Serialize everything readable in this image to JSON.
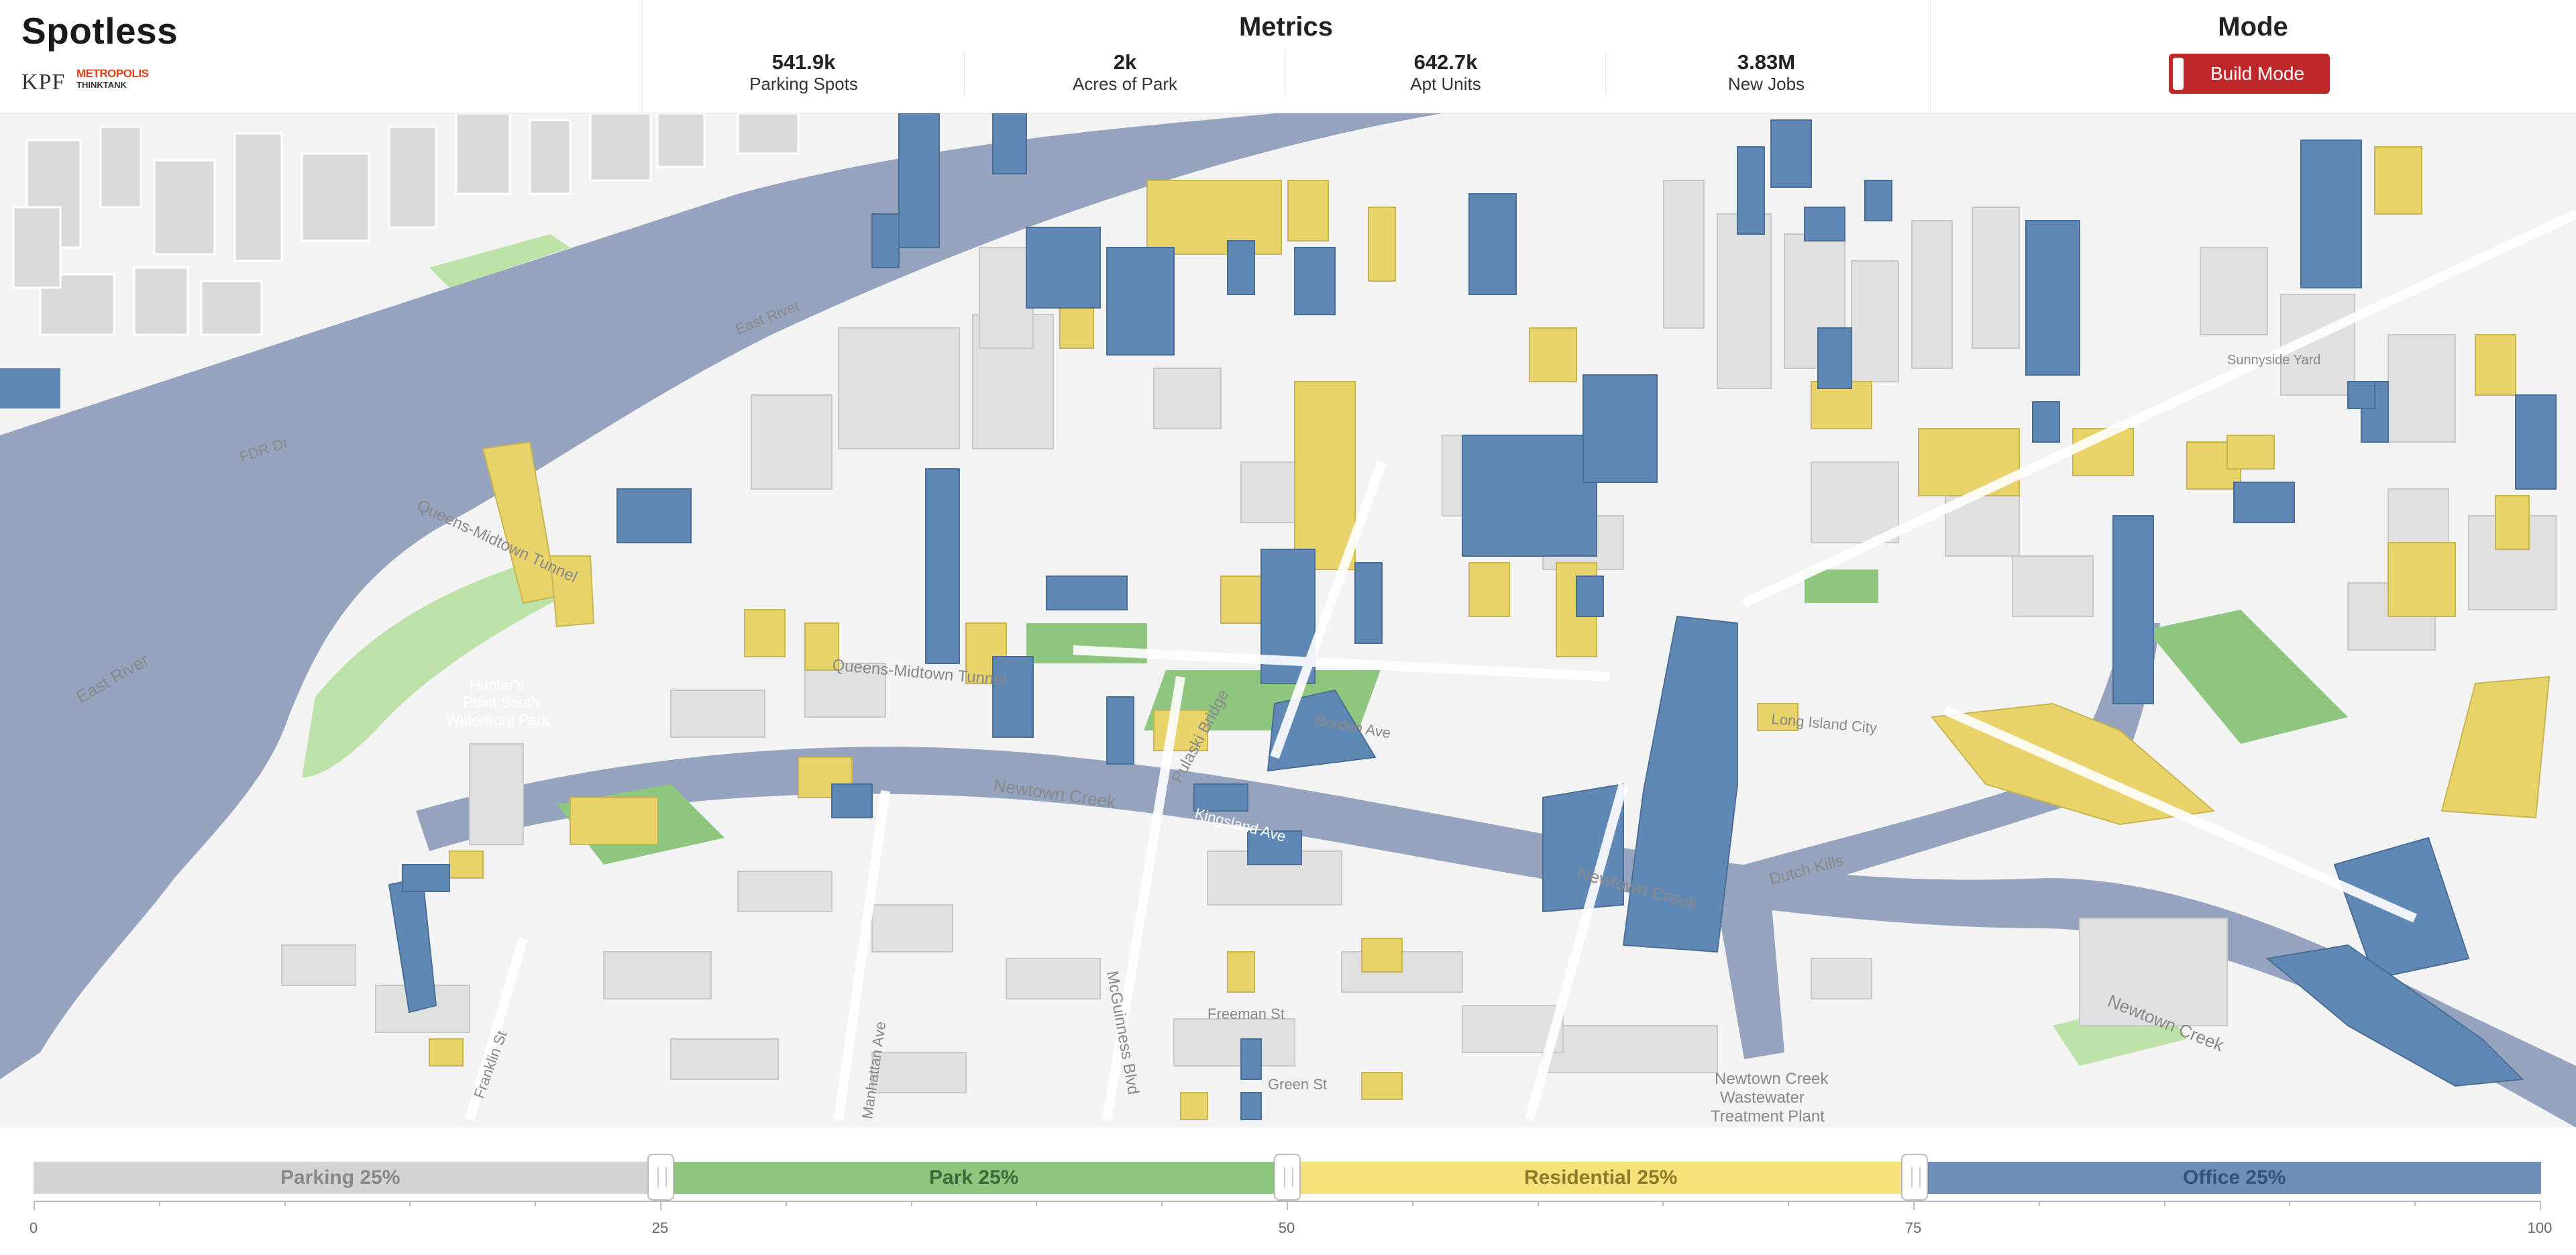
{
  "app": {
    "title": "Spotless"
  },
  "logos": {
    "kpf": "KPF",
    "metropolis_line1": "METROPOLIS",
    "metropolis_line2": "THINKTANK"
  },
  "metrics": {
    "title": "Metrics",
    "items": [
      {
        "value": "541.9k",
        "label": "Parking Spots"
      },
      {
        "value": "2k",
        "label": "Acres of Park"
      },
      {
        "value": "642.7k",
        "label": "Apt Units"
      },
      {
        "value": "3.83M",
        "label": "New Jobs"
      }
    ]
  },
  "mode": {
    "title": "Mode",
    "button_label": "Build Mode",
    "accent": "#c0292b"
  },
  "map": {
    "colors": {
      "water": "#95a3be",
      "park": "#bde2a8",
      "park_dark": "#8fc67f",
      "residential": "#e8d36a",
      "office": "#6088b5",
      "building": "#e2e2e2"
    },
    "labels": {
      "east_river": "East River",
      "fdr_dr": "FDR Dr",
      "queens_midtown_tunnel": "Queens-Midtown Tunnel",
      "hunters_point": "Hunter's",
      "hunters_point_2": "Point South",
      "hunters_point_3": "Waterfront Park",
      "newtown_creek": "Newtown Creek",
      "pulaski_bridge": "Pulaski Bridge",
      "mcguinness_blvd": "McGuinness Blvd",
      "dutch_kills": "Dutch Kills",
      "long_island_city": "Long Island City",
      "sunnyside_yard": "Sunnyside Yard",
      "borden_ave": "Borden Ave",
      "franklin_st": "Franklin St",
      "manhattan_ave": "Manhattan Ave",
      "freeman_st": "Freeman St",
      "green_st": "Green St",
      "kingsland": "Kingsland Ave",
      "treatment_1": "Newtown Creek",
      "treatment_2": "Wastewater",
      "treatment_3": "Treatment Plant"
    }
  },
  "mix": {
    "segments": [
      {
        "label": "Parking 25%",
        "color": "#d3d3d3",
        "text_color": "#888888",
        "share": 0.25
      },
      {
        "label": "Park 25%",
        "color": "#8fc67f",
        "text_color": "#3b6b3a",
        "share": 0.25
      },
      {
        "label": "Residential 25%",
        "color": "#f6e27a",
        "text_color": "#8a7a2a",
        "share": 0.25
      },
      {
        "label": "Office 25%",
        "color": "#6e8fb8",
        "text_color": "#34527a",
        "share": 0.25
      }
    ],
    "axis": {
      "min": 0,
      "max": 100,
      "labels": [
        "0",
        "25",
        "50",
        "75",
        "100"
      ]
    }
  }
}
